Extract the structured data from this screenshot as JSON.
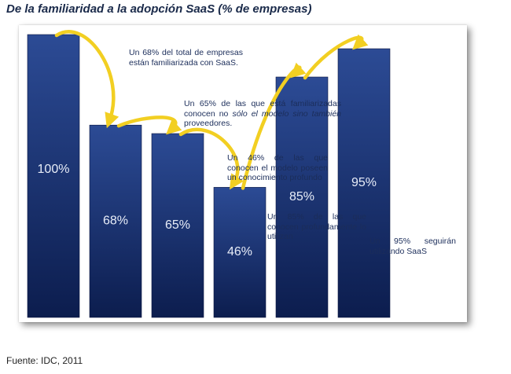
{
  "title": "De la familiaridad a la adopción SaaS (% de empresas)",
  "source": "Fuente: IDC, 2011",
  "colors": {
    "bar_top": "#2c4b95",
    "bar_bottom": "#0c1d4e",
    "arrow": "#f2cf22",
    "bar_label": "#e8edf8",
    "note_text": "#1b2d5a"
  },
  "chart_data": {
    "type": "bar",
    "title": "De la familiaridad a la adopción SaaS (% de empresas)",
    "categories": [
      "",
      "",
      "",
      "",
      "",
      ""
    ],
    "values": [
      100,
      68,
      65,
      46,
      85,
      95
    ],
    "value_labels": [
      "100%",
      "68%",
      "65%",
      "46%",
      "85%",
      "95%"
    ],
    "ylim": [
      0,
      100
    ],
    "grid": false,
    "legend": "none",
    "annotations": [
      {
        "from_bar": 0,
        "to_bar": 1,
        "text": "Un 68% del total de empresas están familiarizada con SaaS."
      },
      {
        "from_bar": 1,
        "to_bar": 2,
        "text_plain": "Un 65% de las que está familiarizadas conocen no",
        "text_italic": "sólo el modelo sino también",
        "text_end": "proveedores."
      },
      {
        "from_bar": 2,
        "to_bar": 3,
        "text": "Un 46% de las que conocen el modelo poseen un conocimiento profundo"
      },
      {
        "from_bar": 3,
        "to_bar": 4,
        "text": "Un 85% de las que conocen profundamente lo utilizan"
      },
      {
        "from_bar": 4,
        "to_bar": 5,
        "text": "Un 95% seguirán utilizando SaaS"
      }
    ]
  }
}
